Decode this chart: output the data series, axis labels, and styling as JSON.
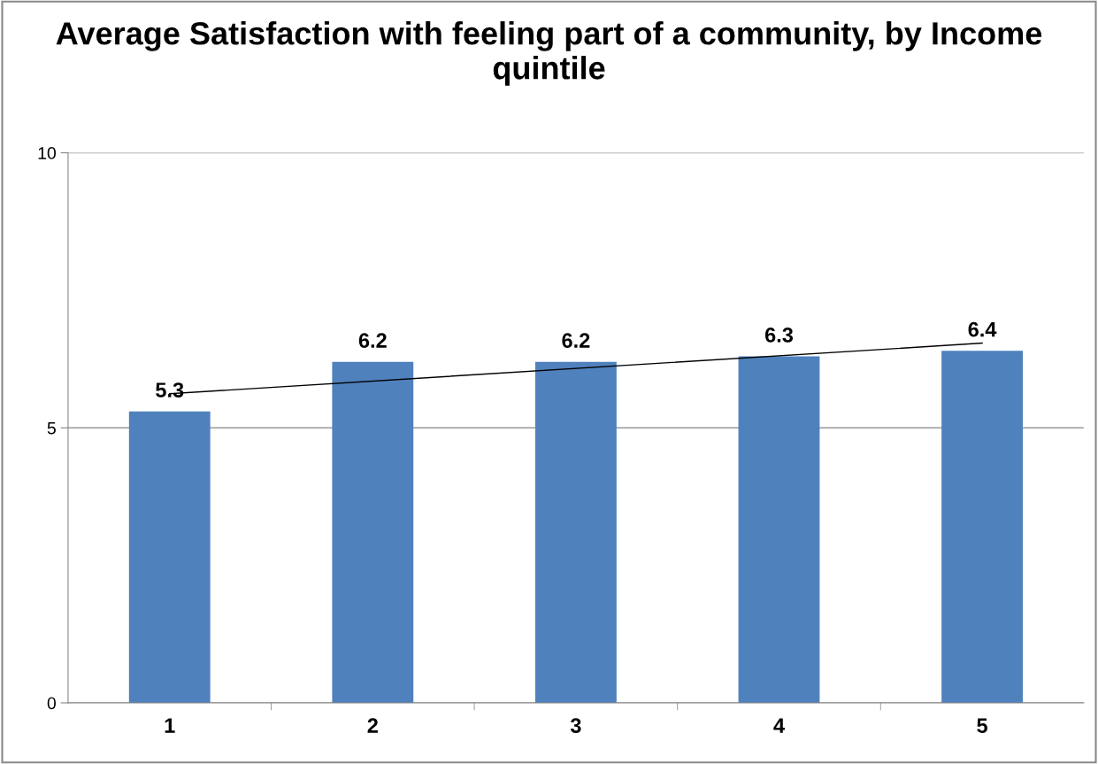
{
  "chart_data": {
    "type": "bar",
    "title": "Average Satisfaction with feeling part of a community, by Income quintile",
    "categories": [
      "1",
      "2",
      "3",
      "4",
      "5"
    ],
    "series": [
      {
        "color": "#4f81bd",
        "values": [
          5.3,
          6.2,
          6.2,
          6.3,
          6.4
        ],
        "value_labels": [
          "5.3",
          "6.2",
          "6.2",
          "6.3",
          "6.4"
        ]
      },
      {
        "type": "line",
        "color": "#000000",
        "x": [
          "1",
          "5"
        ],
        "values": [
          5.62,
          6.54
        ]
      }
    ],
    "ylim": [
      0,
      10
    ],
    "yticks": [
      0,
      5,
      10
    ],
    "grid": "y"
  }
}
